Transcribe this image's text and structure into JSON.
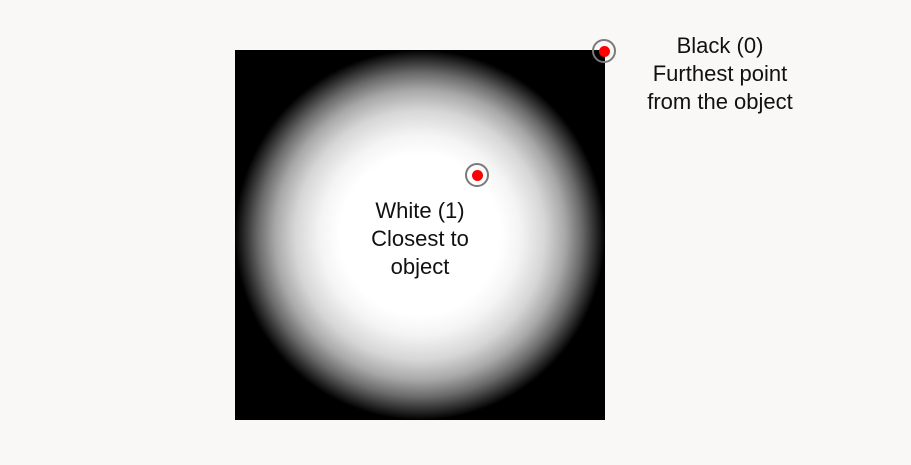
{
  "labels": {
    "white": {
      "line1": "White (1)",
      "line2": "Closest to",
      "line3": "object"
    },
    "black": {
      "line1": "Black (0)",
      "line2": "Furthest point",
      "line3": "from the object"
    }
  },
  "colors": {
    "background": "#f9f8f6",
    "near": "#ffffff",
    "far": "#000000",
    "marker_dot": "#ff0000",
    "marker_ring": "#7a7a7a"
  }
}
